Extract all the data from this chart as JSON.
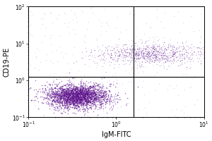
{
  "title": "",
  "xlabel": "IgM-FITC",
  "ylabel": "CD19-PE",
  "xlim": [
    0.1,
    10.0
  ],
  "ylim": [
    0.1,
    100.0
  ],
  "x_ticks_log": [
    -1,
    0,
    1
  ],
  "y_ticks_log": [
    -1,
    0,
    1,
    2
  ],
  "gate_x_log": 0.2,
  "gate_y_log": 0.1,
  "dot_color": "#5b0e8a",
  "background_color": "#ffffff",
  "n_cluster1": 2500,
  "cluster1_x_log_mean": -0.45,
  "cluster1_x_log_std": 0.18,
  "cluster1_y_log_mean": -0.42,
  "cluster1_y_log_std": 0.16,
  "n_cluster2": 900,
  "cluster2_x_log_mean": 0.42,
  "cluster2_x_log_std": 0.32,
  "cluster2_y_log_mean": 0.72,
  "cluster2_y_log_std": 0.14,
  "n_noise": 300,
  "scatter_alpha1": 0.55,
  "scatter_alpha2": 0.35,
  "scatter_size1": 1.2,
  "scatter_size2": 0.9,
  "fontsize_label": 7,
  "fontsize_tick": 5.5
}
